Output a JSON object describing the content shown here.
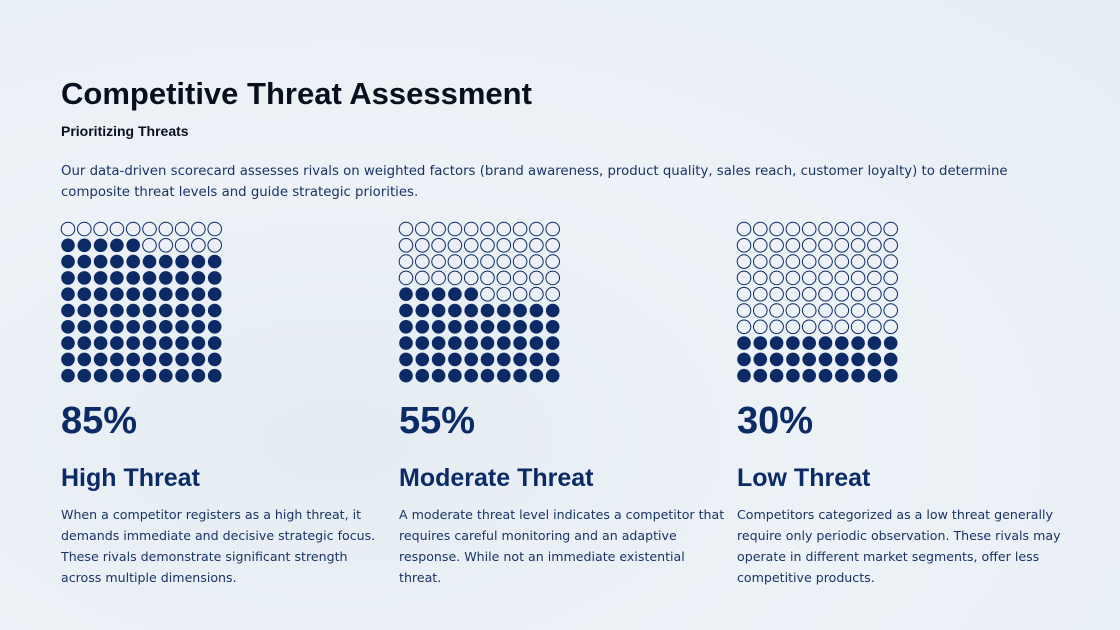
{
  "title": "Competitive Threat Assessment",
  "subtitle": "Prioritizing Threats",
  "description": "Our data-driven scorecard assesses rivals on weighted factors (brand awareness, product quality, sales reach, customer loyalty) to determine composite threat levels and guide strategic priorities.",
  "chart_data": [
    {
      "type": "waffle",
      "title": "High Threat",
      "value": 85,
      "value_label": "85%",
      "color": "#0b2a66",
      "description": "When a competitor registers as a high threat, it demands immediate and decisive strategic focus. These rivals demonstrate significant strength across multiple dimensions."
    },
    {
      "type": "waffle",
      "title": "Moderate Threat",
      "value": 55,
      "value_label": "55%",
      "color": "#0b2a66",
      "description": "A moderate threat level indicates a competitor that requires careful monitoring and an adaptive response. While not an immediate existential threat."
    },
    {
      "type": "waffle",
      "title": "Low Threat",
      "value": 30,
      "value_label": "30%",
      "color": "#0b2a66",
      "description": "Competitors categorized as a low threat generally require only periodic observation. These rivals may operate in different market segments, offer less competitive products."
    }
  ]
}
